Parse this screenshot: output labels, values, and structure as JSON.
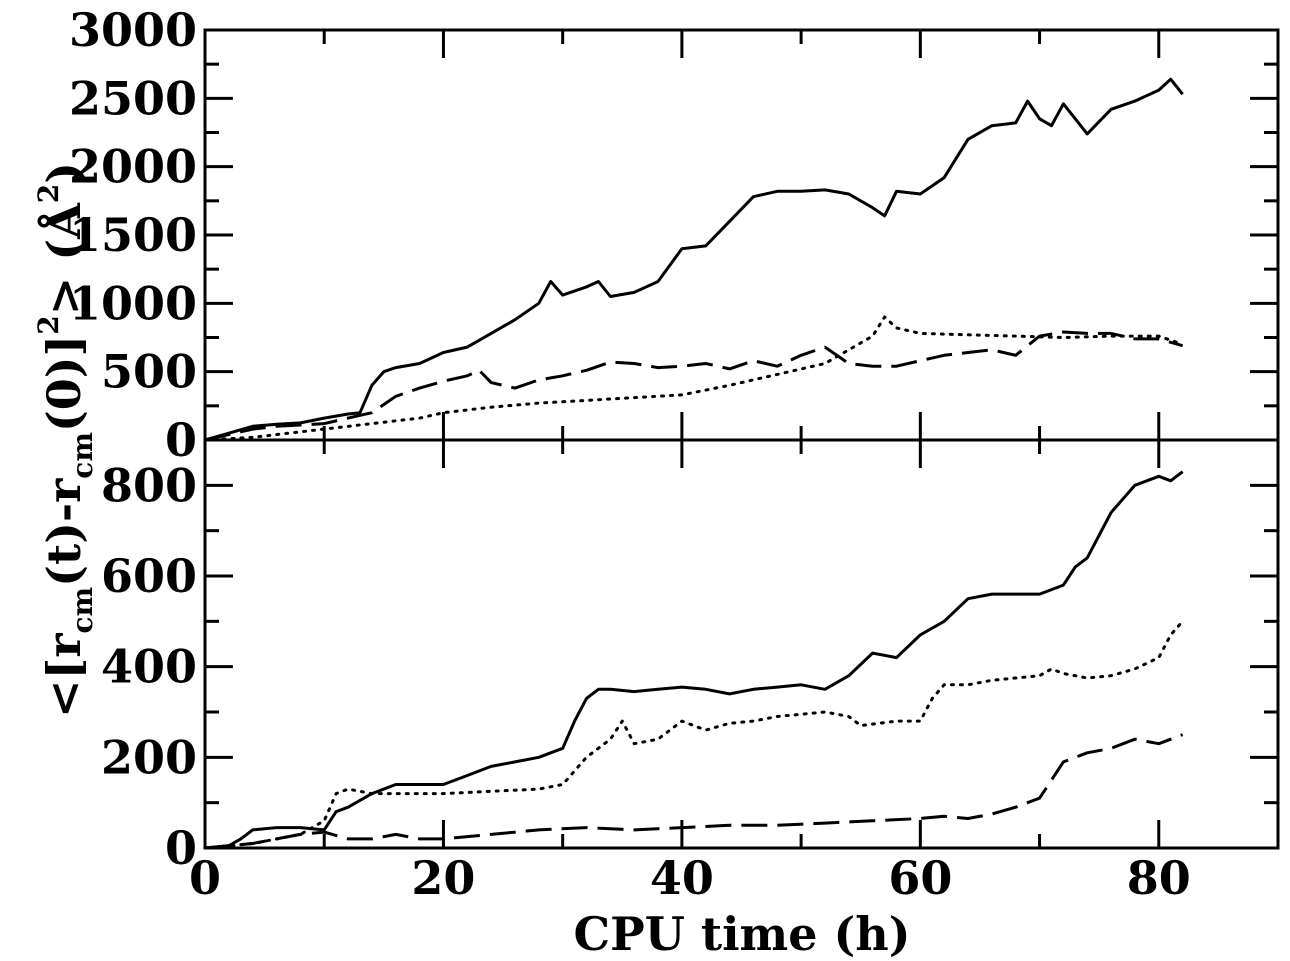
{
  "chart_data": [
    {
      "panel": "top",
      "type": "line",
      "xlim": [
        0,
        90
      ],
      "ylim": [
        0,
        3000
      ],
      "xticks": [
        0,
        20,
        40,
        60,
        80
      ],
      "yticks": [
        0,
        500,
        1000,
        1500,
        2000,
        2500,
        3000
      ],
      "ytick_labels": [
        "0",
        "500",
        "1000",
        "1500",
        "2000",
        "2500",
        "3000"
      ],
      "series": [
        {
          "style": "solid",
          "x": [
            0,
            2,
            4,
            6,
            8,
            10,
            12,
            13,
            14,
            15,
            16,
            18,
            20,
            22,
            24,
            26,
            28,
            29,
            30,
            32,
            33,
            34,
            36,
            38,
            40,
            42,
            44,
            46,
            48,
            50,
            52,
            54,
            56,
            57,
            58,
            60,
            62,
            64,
            66,
            68,
            69,
            70,
            71,
            72,
            74,
            76,
            78,
            80,
            81,
            82
          ],
          "y": [
            0,
            50,
            100,
            115,
            125,
            160,
            190,
            200,
            400,
            500,
            530,
            560,
            640,
            680,
            780,
            880,
            1000,
            1160,
            1060,
            1120,
            1160,
            1050,
            1080,
            1160,
            1400,
            1420,
            1600,
            1780,
            1820,
            1820,
            1830,
            1800,
            1700,
            1640,
            1820,
            1800,
            1920,
            2200,
            2300,
            2320,
            2480,
            2350,
            2300,
            2460,
            2240,
            2420,
            2480,
            2560,
            2640,
            2530
          ]
        },
        {
          "style": "dashed",
          "x": [
            0,
            2,
            4,
            6,
            8,
            10,
            12,
            14,
            16,
            18,
            20,
            22,
            23,
            24,
            26,
            28,
            30,
            32,
            34,
            36,
            38,
            40,
            42,
            44,
            46,
            48,
            50,
            52,
            54,
            56,
            58,
            60,
            62,
            64,
            66,
            68,
            70,
            72,
            74,
            76,
            78,
            80,
            82
          ],
          "y": [
            0,
            40,
            80,
            100,
            110,
            120,
            160,
            200,
            320,
            380,
            430,
            470,
            510,
            420,
            380,
            440,
            470,
            510,
            570,
            560,
            530,
            540,
            560,
            520,
            580,
            540,
            620,
            680,
            560,
            540,
            540,
            580,
            620,
            640,
            660,
            620,
            760,
            790,
            780,
            780,
            740,
            740,
            690
          ]
        },
        {
          "style": "dotted",
          "x": [
            0,
            4,
            8,
            10,
            14,
            18,
            20,
            24,
            28,
            32,
            36,
            40,
            44,
            48,
            52,
            54,
            56,
            57,
            58,
            60,
            64,
            68,
            72,
            76,
            80,
            82
          ],
          "y": [
            0,
            20,
            60,
            80,
            120,
            160,
            200,
            240,
            270,
            290,
            310,
            330,
            400,
            480,
            560,
            660,
            760,
            900,
            820,
            780,
            770,
            760,
            750,
            760,
            760,
            700
          ]
        }
      ]
    },
    {
      "panel": "bottom",
      "type": "line",
      "xlim": [
        0,
        90
      ],
      "ylim": [
        0,
        900
      ],
      "xticks": [
        0,
        20,
        40,
        60,
        80
      ],
      "xtick_labels": [
        "0",
        "20",
        "40",
        "60",
        "80"
      ],
      "yticks": [
        0,
        200,
        400,
        600,
        800
      ],
      "ytick_labels": [
        "0",
        "200",
        "400",
        "600",
        "800"
      ],
      "xlabel": "CPU time (h)",
      "series": [
        {
          "style": "solid",
          "x": [
            0,
            2,
            3,
            4,
            6,
            8,
            10,
            11,
            12,
            14,
            16,
            18,
            20,
            22,
            24,
            26,
            28,
            30,
            31,
            32,
            33,
            34,
            36,
            38,
            40,
            42,
            44,
            46,
            48,
            50,
            52,
            54,
            56,
            58,
            60,
            62,
            64,
            66,
            68,
            70,
            72,
            73,
            74,
            76,
            78,
            80,
            81,
            82
          ],
          "y": [
            0,
            5,
            20,
            40,
            45,
            45,
            40,
            80,
            90,
            120,
            140,
            140,
            140,
            160,
            180,
            190,
            200,
            220,
            280,
            330,
            350,
            350,
            345,
            350,
            355,
            350,
            340,
            350,
            355,
            360,
            350,
            380,
            430,
            420,
            470,
            500,
            550,
            560,
            560,
            560,
            580,
            620,
            640,
            740,
            800,
            820,
            810,
            830
          ]
        },
        {
          "style": "dashed",
          "x": [
            0,
            2,
            4,
            6,
            8,
            10,
            12,
            14,
            16,
            18,
            20,
            24,
            28,
            32,
            36,
            40,
            44,
            48,
            52,
            56,
            60,
            62,
            64,
            66,
            68,
            70,
            72,
            74,
            76,
            78,
            80,
            82
          ],
          "y": [
            0,
            5,
            10,
            20,
            30,
            35,
            20,
            20,
            30,
            20,
            20,
            30,
            40,
            45,
            40,
            45,
            50,
            50,
            55,
            60,
            65,
            70,
            65,
            75,
            90,
            110,
            190,
            210,
            220,
            240,
            230,
            250
          ]
        },
        {
          "style": "dotted",
          "x": [
            0,
            4,
            8,
            10,
            11,
            12,
            14,
            16,
            20,
            24,
            28,
            30,
            32,
            34,
            35,
            36,
            38,
            40,
            42,
            44,
            46,
            48,
            50,
            52,
            54,
            55,
            58,
            60,
            61,
            62,
            64,
            66,
            68,
            70,
            71,
            72,
            74,
            76,
            78,
            80,
            81,
            82
          ],
          "y": [
            0,
            10,
            30,
            60,
            120,
            130,
            120,
            120,
            120,
            125,
            130,
            140,
            200,
            240,
            280,
            230,
            240,
            280,
            260,
            275,
            280,
            290,
            295,
            300,
            290,
            270,
            280,
            280,
            330,
            360,
            360,
            370,
            375,
            380,
            395,
            385,
            375,
            380,
            395,
            420,
            470,
            500
          ]
        }
      ]
    }
  ]
}
